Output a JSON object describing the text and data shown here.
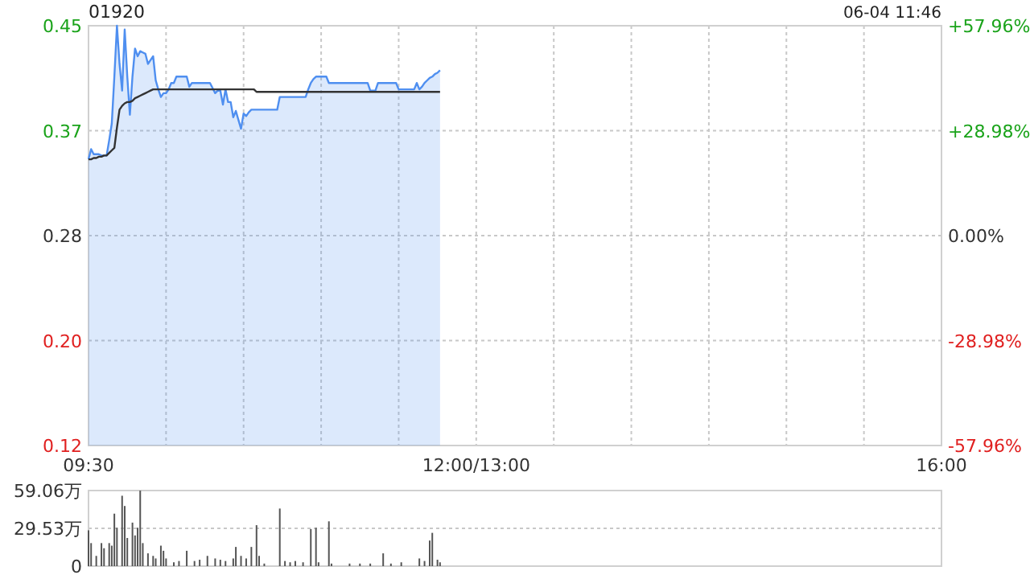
{
  "chart_data": [
    {
      "type": "line",
      "title": "01920",
      "annotations": [
        "06-04 11:46"
      ],
      "categories": [
        "09:30",
        null,
        null,
        null,
        null,
        null,
        null,
        null,
        null,
        null,
        null,
        null,
        null,
        null,
        null,
        null,
        null,
        null,
        null,
        null,
        null,
        null,
        null,
        null,
        null,
        null,
        null,
        null,
        null,
        null,
        null,
        null,
        null,
        null,
        null,
        null,
        null,
        null,
        null,
        null,
        null,
        null,
        null,
        null,
        null,
        null,
        null,
        null,
        null,
        null,
        null,
        null,
        null,
        null,
        null,
        null,
        null,
        null,
        null,
        null,
        null,
        null,
        null,
        null,
        null,
        null,
        null,
        null,
        null,
        null,
        null,
        null,
        null,
        null,
        null,
        null,
        null,
        null,
        null,
        null,
        null,
        null,
        null,
        null,
        null,
        null,
        null,
        null,
        null,
        null,
        null,
        null,
        null,
        null,
        null,
        null,
        null,
        null,
        null,
        null,
        null,
        null,
        null,
        null,
        null,
        null,
        null,
        null,
        null,
        null,
        null,
        null,
        null,
        null,
        null,
        null,
        null,
        null,
        null,
        null,
        null,
        null,
        null,
        null,
        null,
        null,
        null,
        null,
        null,
        null,
        null,
        null,
        null,
        null,
        null,
        null,
        null,
        null,
        null,
        null,
        null,
        null,
        null,
        null,
        null,
        null,
        null,
        null,
        null,
        null,
        "12:00/13:00",
        null,
        null,
        null,
        null,
        null,
        null,
        null,
        null,
        null,
        null,
        null,
        null,
        null,
        null,
        null,
        null,
        null,
        null,
        null,
        null,
        null,
        null,
        null,
        null,
        null,
        null,
        null,
        null,
        null,
        null,
        null,
        null,
        null,
        null,
        null,
        null,
        null,
        null,
        null,
        null,
        null,
        null,
        null,
        null,
        null,
        null,
        null,
        null,
        null,
        null,
        null,
        null,
        null,
        null,
        null,
        null,
        null,
        null,
        null,
        null,
        null,
        null,
        null,
        null,
        null,
        null,
        null,
        null,
        null,
        null,
        null,
        null,
        null,
        null,
        null,
        null,
        null,
        null,
        null,
        null,
        null,
        null,
        null,
        null,
        null,
        null,
        null,
        null,
        null,
        null,
        null,
        null,
        null,
        null,
        null,
        null,
        null,
        null,
        null,
        null,
        null,
        null,
        null,
        null,
        null,
        null,
        null,
        null,
        null,
        null,
        null,
        null,
        null,
        null,
        null,
        null,
        null,
        null,
        null,
        null,
        null,
        null,
        null,
        null,
        null,
        null,
        null,
        null,
        null,
        null,
        null,
        null,
        null,
        null,
        null,
        null,
        null,
        null,
        null,
        null,
        null,
        null,
        null,
        null,
        null,
        null,
        null,
        null,
        null,
        null,
        null,
        null,
        null,
        null,
        null,
        null,
        null,
        null,
        null,
        null,
        null,
        null,
        null,
        null,
        null,
        null,
        null,
        null,
        null,
        null,
        null,
        null,
        null,
        null,
        null,
        null,
        null,
        null,
        null,
        "16:00"
      ],
      "ylim": [
        0.12,
        0.45
      ],
      "yticks": [
        {
          "value": 0.12,
          "label": "0.12"
        },
        {
          "value": 0.2025,
          "label": "0.20"
        },
        {
          "value": 0.285,
          "label": "0.28"
        },
        {
          "value": 0.3675,
          "label": "0.37"
        },
        {
          "value": 0.45,
          "label": "0.45"
        }
      ],
      "y2lim": [
        -57.96,
        57.96
      ],
      "y2ticks": [
        {
          "value": -57.96,
          "label": "-57.96%"
        },
        {
          "value": -28.98,
          "label": "-28.98%"
        },
        {
          "value": 0,
          "label": "0.00%"
        },
        {
          "value": 28.98,
          "label": "+28.98%"
        },
        {
          "value": 57.96,
          "label": "+57.96%"
        }
      ],
      "grid": true,
      "series": [
        {
          "type": "area",
          "color": "#4f8ff0",
          "values": [
            0.345,
            0.353,
            0.349,
            0.349,
            0.349,
            0.348,
            0.348,
            0.348,
            0.36,
            0.373,
            0.41,
            0.45,
            0.42,
            0.399,
            0.447,
            0.41,
            0.38,
            0.41,
            0.432,
            0.426,
            0.43,
            0.429,
            0.428,
            0.42,
            0.423,
            0.426,
            0.407,
            0.4,
            0.394,
            0.397,
            0.397,
            0.4,
            0.405,
            0.405,
            0.41,
            0.41,
            0.41,
            0.41,
            0.41,
            0.402,
            0.405,
            0.405,
            0.405,
            0.405,
            0.405,
            0.405,
            0.405,
            0.405,
            0.401,
            0.397,
            0.399,
            0.399,
            0.388,
            0.4,
            0.39,
            0.39,
            0.378,
            0.383,
            0.376,
            0.369,
            0.381,
            0.379,
            0.382,
            0.384,
            0.384,
            0.384,
            0.384,
            0.384,
            0.384,
            0.384,
            0.384,
            0.384,
            0.384,
            0.384,
            0.394,
            0.394,
            0.394,
            0.394,
            0.394,
            0.394,
            0.394,
            0.394,
            0.394,
            0.394,
            0.394,
            0.4,
            0.405,
            0.408,
            0.41,
            0.41,
            0.41,
            0.41,
            0.41,
            0.405,
            0.405,
            0.405,
            0.405,
            0.405,
            0.405,
            0.405,
            0.405,
            0.405,
            0.405,
            0.405,
            0.405,
            0.405,
            0.405,
            0.405,
            0.405,
            0.399,
            0.399,
            0.399,
            0.405,
            0.405,
            0.405,
            0.405,
            0.405,
            0.405,
            0.405,
            0.405,
            0.4,
            0.4,
            0.4,
            0.4,
            0.4,
            0.4,
            0.4,
            0.405,
            0.4,
            0.402,
            0.405,
            0.407,
            0.409,
            0.41,
            0.412,
            0.413,
            0.415,
            null,
            null,
            null,
            null,
            null,
            null,
            null,
            null,
            null,
            null,
            null,
            null,
            null,
            null,
            null,
            null,
            null,
            null,
            null,
            null,
            null,
            null,
            null,
            null,
            null,
            null,
            null,
            null,
            null,
            null,
            null,
            null,
            null,
            null,
            null,
            null,
            null,
            null,
            null,
            null,
            null,
            null,
            null,
            null,
            null,
            null,
            null,
            null,
            null,
            null,
            null,
            null,
            null,
            null,
            null,
            null,
            null,
            null,
            null,
            null,
            null,
            null,
            null,
            null,
            null,
            null,
            null,
            null,
            null,
            null,
            null,
            null,
            null,
            null,
            null,
            null,
            null,
            null,
            null,
            null,
            null,
            null,
            null,
            null,
            null,
            null,
            null,
            null,
            null,
            null,
            null,
            null,
            null,
            null,
            null,
            null,
            null,
            null,
            null,
            null,
            null,
            null,
            null,
            null,
            null,
            null,
            null,
            null,
            null,
            null,
            null,
            null,
            null,
            null,
            null,
            null,
            null,
            null,
            null,
            null,
            null,
            null,
            null,
            null,
            null,
            null,
            null,
            null,
            null,
            null,
            null,
            null,
            null,
            null,
            null,
            null,
            null,
            null,
            null,
            null,
            null,
            null,
            null,
            null,
            null,
            null,
            null,
            null,
            null,
            null,
            null,
            null,
            null,
            null,
            null,
            null,
            null,
            null,
            null,
            null,
            null,
            null,
            null,
            null,
            null,
            null,
            null,
            null,
            null,
            null,
            null,
            null,
            null,
            null,
            null,
            null,
            null,
            null,
            null,
            null,
            null,
            null,
            null,
            null,
            null,
            null,
            null,
            null,
            null,
            null,
            null,
            null,
            null,
            null
          ]
        },
        {
          "color": "#333333",
          "values": [
            0.345,
            0.345,
            0.346,
            0.346,
            0.347,
            0.347,
            0.348,
            0.348,
            0.35,
            0.352,
            0.354,
            0.37,
            0.384,
            0.387,
            0.389,
            0.39,
            0.39,
            0.391,
            0.393,
            0.394,
            0.395,
            0.396,
            0.397,
            0.398,
            0.399,
            0.4,
            0.4,
            0.4,
            0.4,
            0.4,
            0.4,
            0.4,
            0.4,
            0.4,
            0.4,
            0.4,
            0.4,
            0.4,
            0.4,
            0.4,
            0.4,
            0.4,
            0.4,
            0.4,
            0.4,
            0.4,
            0.4,
            0.4,
            0.4,
            0.4,
            0.4,
            0.4,
            0.4,
            0.4,
            0.4,
            0.4,
            0.4,
            0.4,
            0.4,
            0.4,
            0.4,
            0.4,
            0.4,
            0.4,
            0.4,
            0.398,
            0.398,
            0.398,
            0.398,
            0.398,
            0.398,
            0.398,
            0.398,
            0.398,
            0.398,
            0.398,
            0.398,
            0.398,
            0.398,
            0.398,
            0.398,
            0.398,
            0.398,
            0.398,
            0.398,
            0.398,
            0.398,
            0.398,
            0.398,
            0.398,
            0.398,
            0.398,
            0.398,
            0.398,
            0.398,
            0.398,
            0.398,
            0.398,
            0.398,
            0.398,
            0.398,
            0.398,
            0.398,
            0.398,
            0.398,
            0.398,
            0.398,
            0.398,
            0.398,
            0.398,
            0.398,
            0.398,
            0.398,
            0.398,
            0.398,
            0.398,
            0.398,
            0.398,
            0.398,
            0.398,
            0.398,
            0.398,
            0.398,
            0.398,
            0.398,
            0.398,
            0.398,
            0.398,
            0.398,
            0.398,
            0.398,
            0.398,
            0.398,
            0.398,
            0.398,
            0.398,
            0.398,
            null,
            null,
            null,
            null,
            null,
            null,
            null,
            null,
            null,
            null,
            null,
            null,
            null,
            null,
            null,
            null,
            null,
            null,
            null,
            null,
            null,
            null,
            null,
            null,
            null,
            null,
            null,
            null,
            null,
            null,
            null,
            null,
            null,
            null,
            null,
            null,
            null,
            null,
            null,
            null,
            null,
            null,
            null,
            null,
            null,
            null,
            null,
            null,
            null,
            null,
            null,
            null,
            null,
            null,
            null,
            null,
            null,
            null,
            null,
            null,
            null,
            null,
            null,
            null,
            null,
            null,
            null,
            null,
            null,
            null,
            null,
            null,
            null,
            null,
            null,
            null,
            null,
            null,
            null,
            null,
            null,
            null,
            null,
            null,
            null,
            null,
            null,
            null,
            null,
            null,
            null,
            null,
            null,
            null,
            null,
            null,
            null,
            null,
            null,
            null,
            null,
            null,
            null,
            null,
            null,
            null,
            null,
            null,
            null,
            null,
            null,
            null,
            null,
            null,
            null,
            null,
            null,
            null,
            null,
            null,
            null,
            null,
            null,
            null,
            null,
            null,
            null,
            null,
            null,
            null,
            null,
            null,
            null,
            null,
            null,
            null,
            null,
            null,
            null,
            null,
            null,
            null,
            null,
            null,
            null,
            null,
            null,
            null,
            null,
            null,
            null,
            null,
            null,
            null,
            null,
            null,
            null,
            null,
            null,
            null,
            null,
            null,
            null,
            null,
            null,
            null,
            null,
            null,
            null,
            null,
            null,
            null,
            null,
            null,
            null,
            null,
            null,
            null,
            null,
            null,
            null,
            null,
            null,
            null,
            null,
            null,
            null,
            null,
            null,
            null,
            null,
            null,
            null,
            null
          ]
        }
      ]
    },
    {
      "type": "bar",
      "tick_labels": "y",
      "grid": "y",
      "categories": [
        null,
        null,
        null,
        null,
        null,
        null,
        null,
        null,
        null,
        null,
        null,
        null,
        null,
        null,
        null,
        null,
        null,
        null,
        null,
        null,
        null,
        null,
        null,
        null,
        null,
        null,
        null,
        null,
        null,
        null,
        null,
        null,
        null,
        null,
        null,
        null,
        null,
        null,
        null,
        null,
        null,
        null,
        null,
        null,
        null,
        null,
        null,
        null,
        null,
        null,
        null,
        null,
        null,
        null,
        null,
        null,
        null,
        null,
        null,
        null,
        null,
        null,
        null,
        null,
        null,
        null,
        null,
        null,
        null,
        null,
        null,
        null,
        null,
        null,
        null,
        null,
        null,
        null,
        null,
        null,
        null,
        null,
        null,
        null,
        null,
        null,
        null,
        null,
        null,
        null,
        null,
        null,
        null,
        null,
        null,
        null,
        null,
        null,
        null,
        null,
        null,
        null,
        null,
        null,
        null,
        null,
        null,
        null,
        null,
        null,
        null,
        null,
        null,
        null,
        null,
        null,
        null,
        null,
        null,
        null,
        null,
        null,
        null,
        null,
        null,
        null,
        null,
        null,
        null,
        null,
        null,
        null,
        null,
        null,
        null,
        null,
        null,
        null,
        null,
        null,
        null,
        null,
        null,
        null,
        null,
        null,
        null,
        null,
        null,
        null,
        null,
        null,
        null,
        null,
        null,
        null,
        null,
        null,
        null,
        null,
        null,
        null,
        null,
        null,
        null,
        null,
        null,
        null,
        null,
        null,
        null,
        null,
        null,
        null,
        null,
        null,
        null,
        null,
        null,
        null,
        null,
        null,
        null,
        null,
        null,
        null,
        null,
        null,
        null,
        null,
        null,
        null,
        null,
        null,
        null,
        null,
        null,
        null,
        null,
        null,
        null,
        null,
        null,
        null,
        null,
        null,
        null,
        null,
        null,
        null,
        null,
        null,
        null,
        null,
        null,
        null,
        null,
        null,
        null,
        null,
        null,
        null,
        null,
        null,
        null,
        null,
        null,
        null,
        null,
        null,
        null,
        null,
        null,
        null,
        null,
        null,
        null,
        null,
        null,
        null,
        null,
        null,
        null,
        null,
        null,
        null,
        null,
        null,
        null,
        null,
        null,
        null,
        null,
        null,
        null,
        null,
        null,
        null,
        null,
        null,
        null,
        null,
        null,
        null,
        null,
        null,
        null,
        null,
        null,
        null,
        null,
        null,
        null,
        null,
        null,
        null,
        null,
        null,
        null,
        null,
        null,
        null,
        null,
        null,
        null,
        null,
        null,
        null,
        null,
        null,
        null,
        null,
        null,
        null,
        null,
        null,
        null,
        null,
        null,
        null,
        null,
        null,
        null,
        null,
        null,
        null,
        null,
        null,
        null,
        null,
        null,
        null,
        null,
        null,
        null,
        null,
        null,
        null,
        null,
        null,
        null,
        null,
        null,
        null,
        null,
        null,
        null,
        null,
        null,
        null,
        null
      ],
      "ylim": [
        0,
        59.06
      ],
      "yticks": [
        {
          "value": 0,
          "label": "0"
        },
        {
          "value": 29.53,
          "label": "29.53万"
        },
        {
          "value": 59.06,
          "label": "59.06万"
        }
      ],
      "series": [
        {
          "color": "#555555",
          "values": [
            28,
            18,
            null,
            8,
            null,
            18,
            14,
            null,
            18,
            16,
            41,
            30,
            null,
            55,
            47,
            22,
            null,
            34,
            24,
            30,
            59,
            18,
            null,
            10,
            null,
            8,
            6,
            null,
            16,
            12,
            6,
            null,
            null,
            3,
            null,
            4,
            null,
            null,
            12,
            null,
            null,
            4,
            null,
            5,
            null,
            null,
            8,
            null,
            null,
            6,
            null,
            5,
            null,
            4,
            null,
            null,
            6,
            15,
            null,
            8,
            null,
            6,
            null,
            15,
            null,
            32,
            8,
            null,
            2,
            null,
            null,
            null,
            null,
            null,
            45,
            null,
            4,
            null,
            3,
            null,
            4,
            null,
            null,
            3,
            null,
            null,
            29,
            null,
            30,
            3,
            null,
            null,
            null,
            35,
            2,
            null,
            null,
            null,
            null,
            null,
            null,
            2,
            null,
            null,
            null,
            2,
            null,
            null,
            null,
            2,
            null,
            null,
            null,
            null,
            10,
            null,
            null,
            2,
            null,
            null,
            null,
            3,
            null,
            null,
            null,
            null,
            null,
            null,
            6,
            null,
            4,
            null,
            20,
            26,
            null,
            5,
            3,
            null,
            null,
            null,
            null,
            null,
            null,
            null,
            null,
            null,
            null,
            null,
            null,
            null,
            null,
            null,
            null,
            null,
            null,
            null,
            null,
            null,
            null,
            null,
            null,
            null,
            null,
            null,
            null,
            null,
            null,
            null,
            null,
            null,
            null,
            null,
            null,
            null,
            null,
            null,
            null,
            null,
            null,
            null,
            null,
            null,
            null,
            null,
            null,
            null,
            null,
            null,
            null,
            null,
            null,
            null,
            null,
            null,
            null,
            null,
            null,
            null,
            null,
            null,
            null,
            null,
            null,
            null,
            null,
            null,
            null,
            null,
            null,
            null,
            null,
            null,
            null,
            null,
            null,
            null,
            null,
            null,
            null,
            null,
            null,
            null,
            null,
            null,
            null,
            null,
            null,
            null,
            null,
            null,
            null,
            null,
            null,
            null,
            null,
            null,
            null,
            null,
            null,
            null,
            null,
            null,
            null,
            null,
            null,
            null,
            null,
            null,
            null,
            null,
            null,
            null,
            null,
            null,
            null,
            null,
            null,
            null,
            null,
            null,
            null,
            null,
            null,
            null,
            null,
            null,
            null,
            null,
            null,
            null,
            null,
            null,
            null,
            null,
            null,
            null,
            null,
            null,
            null,
            null,
            null,
            null,
            null,
            null,
            null,
            null,
            null,
            null,
            null,
            null,
            null,
            null,
            null,
            null,
            null,
            null,
            null,
            null,
            null,
            null,
            null,
            null,
            null,
            null,
            null,
            null,
            null,
            null,
            null,
            null,
            null,
            null,
            null,
            null,
            null,
            null,
            null,
            null,
            null,
            null,
            null,
            null,
            null,
            null,
            null,
            null,
            null,
            null,
            null,
            null,
            null
          ]
        }
      ]
    }
  ]
}
